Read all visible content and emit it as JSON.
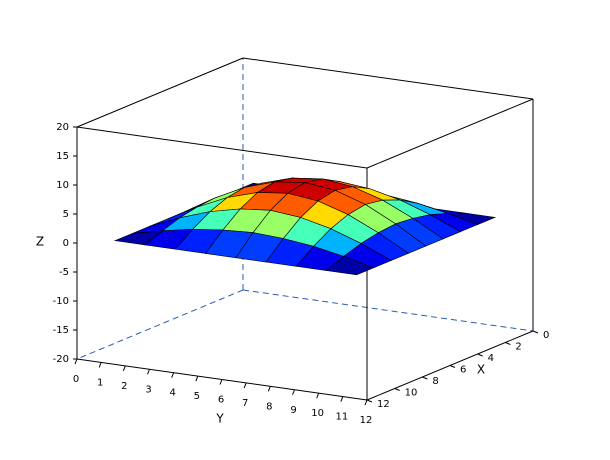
{
  "chart_data": {
    "type": "surface",
    "colormap": "jet",
    "xlabel": "X",
    "ylabel": "Y",
    "zlabel": "Z",
    "x": [
      1,
      2.25,
      3.5,
      4.75,
      6,
      7.25,
      8.5,
      9.75,
      11
    ],
    "y": [
      1,
      2.25,
      3.5,
      4.75,
      6,
      7.25,
      8.5,
      9.75,
      11
    ],
    "z": [
      [
        0,
        0,
        0,
        0,
        0,
        0,
        0,
        0,
        0
      ],
      [
        0,
        1.2,
        2.2,
        2.8,
        3.1,
        2.8,
        2.2,
        1.2,
        0
      ],
      [
        0,
        2.2,
        4,
        5.2,
        5.7,
        5.2,
        4,
        2.2,
        0
      ],
      [
        0,
        2.8,
        5.2,
        6.8,
        7.4,
        6.8,
        5.2,
        2.8,
        0
      ],
      [
        0,
        3.1,
        5.7,
        7.4,
        8,
        7.4,
        5.7,
        3.1,
        0
      ],
      [
        0,
        2.8,
        5.2,
        6.8,
        7.4,
        6.8,
        5.2,
        2.8,
        0
      ],
      [
        0,
        2.2,
        4,
        5.2,
        5.7,
        5.2,
        4,
        2.2,
        0
      ],
      [
        0,
        1.2,
        2.2,
        2.8,
        3.1,
        2.8,
        2.2,
        1.2,
        0
      ],
      [
        0,
        0,
        0,
        0,
        0,
        0,
        0,
        0,
        0
      ]
    ],
    "xlim": [
      0,
      12
    ],
    "ylim": [
      0,
      12
    ],
    "zlim": [
      -20,
      20
    ],
    "xticks": [
      0,
      2,
      4,
      6,
      8,
      10,
      12
    ],
    "yticks": [
      0,
      1,
      2,
      3,
      4,
      5,
      6,
      7,
      8,
      9,
      10,
      11,
      12
    ],
    "zticks": [
      -20,
      -15,
      -10,
      -5,
      0,
      5,
      10,
      15,
      20
    ]
  }
}
